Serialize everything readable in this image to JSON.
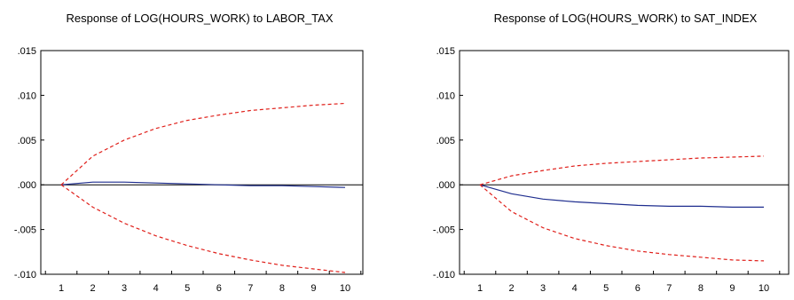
{
  "chart_data": [
    {
      "type": "line",
      "title": "Response of LOG(HOURS_WORK) to LABOR_TAX",
      "x": [
        1,
        2,
        3,
        4,
        5,
        6,
        7,
        8,
        9,
        10
      ],
      "ylim": [
        -0.01,
        0.015
      ],
      "yticks": [
        ".015",
        ".010",
        ".005",
        ".000",
        "-.005",
        "-.010"
      ],
      "xticks": [
        "1",
        "2",
        "3",
        "4",
        "5",
        "6",
        "7",
        "8",
        "9",
        "10"
      ],
      "zero_line": true,
      "grid": false,
      "series": [
        {
          "role": "response",
          "color": "#1f2e8f",
          "dash": "solid",
          "values": [
            0.0,
            0.0003,
            0.0003,
            0.0002,
            0.0001,
            0.0,
            -0.0001,
            -0.0001,
            -0.0002,
            -0.0003
          ]
        },
        {
          "role": "upper band",
          "color": "#e0201b",
          "dash": "dashed",
          "values": [
            0.0,
            0.0032,
            0.005,
            0.0063,
            0.0072,
            0.0078,
            0.0083,
            0.0086,
            0.0089,
            0.0091
          ]
        },
        {
          "role": "lower band",
          "color": "#e0201b",
          "dash": "dashed",
          "values": [
            0.0,
            -0.0025,
            -0.0043,
            -0.0057,
            -0.0068,
            -0.0077,
            -0.0084,
            -0.009,
            -0.0094,
            -0.0098
          ]
        }
      ]
    },
    {
      "type": "line",
      "title": "Response of LOG(HOURS_WORK) to SAT_INDEX",
      "x": [
        1,
        2,
        3,
        4,
        5,
        6,
        7,
        8,
        9,
        10
      ],
      "ylim": [
        -0.01,
        0.015
      ],
      "yticks": [
        ".015",
        ".010",
        ".005",
        ".000",
        "-.005",
        "-.010"
      ],
      "xticks": [
        "1",
        "2",
        "3",
        "4",
        "5",
        "6",
        "7",
        "8",
        "9",
        "10"
      ],
      "zero_line": true,
      "grid": false,
      "series": [
        {
          "role": "response",
          "color": "#1f2e8f",
          "dash": "solid",
          "values": [
            0.0,
            -0.001,
            -0.0016,
            -0.0019,
            -0.0021,
            -0.0023,
            -0.0024,
            -0.0024,
            -0.0025,
            -0.0025
          ]
        },
        {
          "role": "upper band",
          "color": "#e0201b",
          "dash": "dashed",
          "values": [
            0.0,
            0.001,
            0.0016,
            0.0021,
            0.0024,
            0.0026,
            0.0028,
            0.003,
            0.0031,
            0.0032
          ]
        },
        {
          "role": "lower band",
          "color": "#e0201b",
          "dash": "dashed",
          "values": [
            0.0,
            -0.003,
            -0.0048,
            -0.006,
            -0.0068,
            -0.0074,
            -0.0078,
            -0.0081,
            -0.0084,
            -0.0085
          ]
        }
      ]
    }
  ]
}
